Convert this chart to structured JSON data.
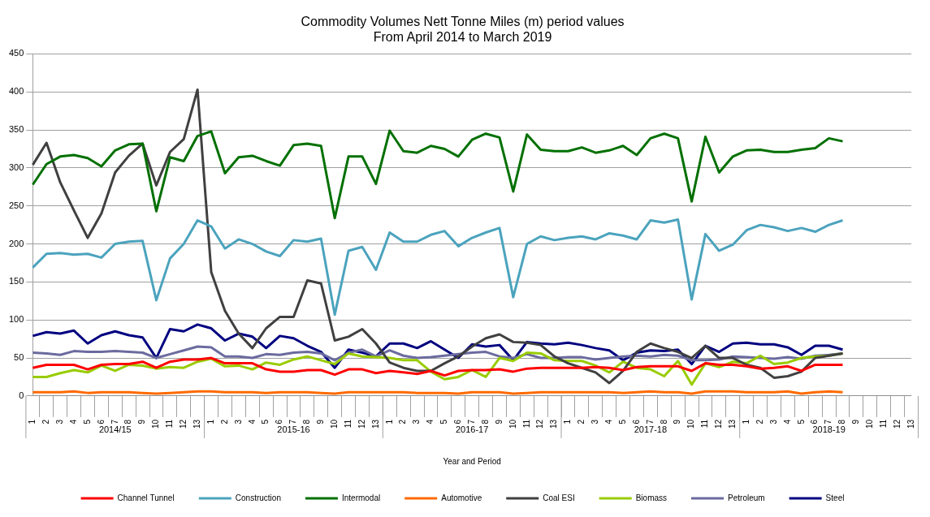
{
  "chart_data": {
    "type": "line",
    "title": "Commodity Volumes Nett Tonne Miles (m) period values\nFrom April 2014 to March 2019",
    "xlabel": "Year and Period",
    "categories": [
      "1",
      "2",
      "3",
      "4",
      "5",
      "6",
      "7",
      "8",
      "9",
      "10",
      "11",
      "12",
      "13",
      "1",
      "2",
      "3",
      "4",
      "5",
      "6",
      "7",
      "8",
      "9",
      "10",
      "11",
      "12",
      "13",
      "1",
      "2",
      "3",
      "4",
      "5",
      "6",
      "7",
      "8",
      "9",
      "10",
      "11",
      "12",
      "13",
      "1",
      "2",
      "3",
      "4",
      "5",
      "6",
      "7",
      "8",
      "9",
      "10",
      "11",
      "12",
      "13",
      "1",
      "2",
      "3",
      "4",
      "5",
      "6",
      "7",
      "8",
      "9",
      "10",
      "11",
      "12",
      "13"
    ],
    "annotations": [
      "2014/15",
      "2015-16",
      "2016-17",
      "2017-18",
      "2018-19"
    ],
    "ylim": [
      0,
      450
    ],
    "yticks": [
      0,
      50,
      100,
      150,
      200,
      250,
      300,
      350,
      400,
      450
    ],
    "grid": "y",
    "legend": "bottom",
    "marker": "none",
    "line_style": "solid",
    "series": [
      {
        "name": "Channel Tunnel",
        "color": "#ff0000",
        "values": [
          37,
          41,
          41,
          41,
          35,
          41,
          42,
          42,
          45,
          37,
          45,
          48,
          48,
          50,
          43,
          43,
          43,
          35,
          32,
          32,
          34,
          34,
          28,
          35,
          35,
          30,
          33,
          31,
          29,
          33,
          27,
          33,
          34,
          34,
          35,
          32,
          36,
          37,
          37,
          37,
          37,
          38,
          37,
          34,
          38,
          39,
          39,
          39,
          33,
          43,
          41,
          41,
          39,
          36,
          37,
          39,
          33,
          41,
          41,
          41,
          null,
          null,
          null,
          null,
          null
        ]
      },
      {
        "name": "Construction",
        "color": "#4ba3bd",
        "values": [
          169,
          187,
          188,
          186,
          187,
          182,
          200,
          203,
          204,
          126,
          181,
          200,
          231,
          223,
          194,
          206,
          200,
          190,
          184,
          205,
          203,
          207,
          107,
          191,
          196,
          166,
          215,
          203,
          203,
          212,
          217,
          197,
          208,
          215,
          221,
          130,
          200,
          210,
          205,
          208,
          210,
          206,
          214,
          211,
          206,
          231,
          228,
          232,
          127,
          213,
          191,
          199,
          218,
          225,
          222,
          217,
          221,
          216,
          225,
          231,
          null,
          null,
          null,
          null,
          null
        ]
      },
      {
        "name": "Intermodal",
        "color": "#007000",
        "values": [
          278,
          305,
          315,
          317,
          313,
          302,
          323,
          331,
          332,
          243,
          314,
          309,
          342,
          348,
          293,
          314,
          316,
          309,
          303,
          330,
          332,
          329,
          234,
          315,
          315,
          279,
          349,
          322,
          320,
          329,
          325,
          315,
          337,
          345,
          340,
          269,
          344,
          324,
          322,
          322,
          327,
          320,
          323,
          329,
          317,
          339,
          345,
          339,
          256,
          341,
          294,
          315,
          323,
          324,
          321,
          321,
          324,
          326,
          339,
          335,
          null,
          null,
          null,
          null,
          null
        ]
      },
      {
        "name": "Automotive",
        "color": "#ff6a00",
        "values": [
          5,
          5,
          5,
          6,
          4,
          5,
          5,
          5,
          4,
          3,
          4,
          5,
          6,
          6,
          5,
          5,
          5,
          4,
          5,
          5,
          5,
          4,
          3,
          5,
          5,
          5,
          5,
          5,
          4,
          4,
          4,
          3,
          5,
          5,
          5,
          3,
          4,
          5,
          5,
          5,
          5,
          5,
          5,
          4,
          5,
          6,
          5,
          5,
          3,
          6,
          6,
          6,
          5,
          5,
          5,
          6,
          3,
          5,
          6,
          5,
          null,
          null,
          null,
          null,
          null
        ]
      },
      {
        "name": "Coal ESI",
        "color": "#404040",
        "values": [
          304,
          333,
          281,
          244,
          208,
          240,
          294,
          316,
          332,
          277,
          321,
          338,
          403,
          163,
          112,
          82,
          63,
          89,
          104,
          104,
          152,
          148,
          73,
          78,
          88,
          69,
          44,
          37,
          33,
          33,
          43,
          52,
          65,
          76,
          81,
          71,
          70,
          67,
          52,
          43,
          37,
          31,
          17,
          33,
          58,
          69,
          63,
          58,
          50,
          66,
          50,
          50,
          41,
          37,
          24,
          26,
          32,
          50,
          53,
          56,
          null,
          null,
          null,
          null,
          null
        ]
      },
      {
        "name": "Biomass",
        "color": "#99cc00",
        "values": [
          25,
          25,
          30,
          34,
          31,
          40,
          33,
          41,
          40,
          36,
          38,
          37,
          45,
          49,
          39,
          40,
          35,
          44,
          41,
          48,
          52,
          47,
          42,
          56,
          52,
          51,
          50,
          47,
          47,
          32,
          22,
          25,
          34,
          25,
          50,
          46,
          57,
          56,
          47,
          46,
          46,
          40,
          31,
          45,
          37,
          35,
          26,
          46,
          15,
          43,
          38,
          45,
          43,
          53,
          42,
          44,
          50,
          52,
          53,
          56,
          null,
          null,
          null,
          null,
          null
        ]
      },
      {
        "name": "Petroleum",
        "color": "#6b6b9f",
        "values": [
          57,
          56,
          54,
          59,
          58,
          58,
          59,
          58,
          57,
          50,
          55,
          60,
          65,
          64,
          52,
          52,
          50,
          55,
          54,
          57,
          58,
          56,
          47,
          57,
          61,
          52,
          60,
          53,
          50,
          51,
          53,
          55,
          57,
          58,
          52,
          50,
          55,
          50,
          50,
          51,
          51,
          48,
          50,
          52,
          53,
          52,
          54,
          53,
          47,
          47,
          48,
          52,
          51,
          50,
          49,
          51,
          49,
          53,
          54,
          56,
          null,
          null,
          null,
          null,
          null
        ]
      },
      {
        "name": "Steel",
        "color": "#000080",
        "values": [
          79,
          84,
          82,
          86,
          69,
          80,
          85,
          80,
          77,
          50,
          88,
          85,
          94,
          89,
          73,
          82,
          78,
          63,
          79,
          76,
          66,
          58,
          37,
          61,
          57,
          52,
          69,
          69,
          63,
          72,
          61,
          50,
          68,
          65,
          67,
          47,
          71,
          69,
          68,
          70,
          67,
          63,
          60,
          47,
          57,
          60,
          59,
          61,
          42,
          66,
          58,
          69,
          70,
          68,
          68,
          64,
          54,
          66,
          66,
          61,
          null,
          null,
          null,
          null,
          null
        ]
      }
    ]
  }
}
